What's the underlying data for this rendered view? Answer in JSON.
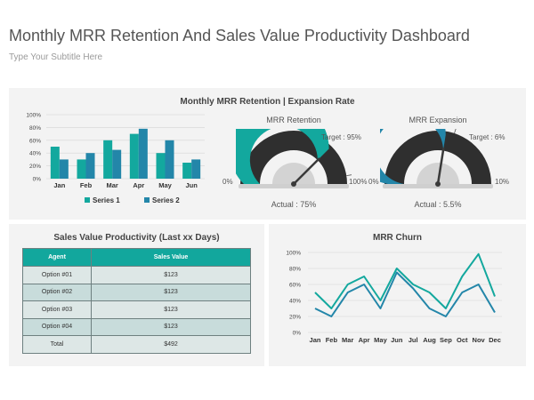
{
  "header": {
    "title": "Monthly MRR Retention And Sales Value Productivity Dashboard",
    "subtitle": "Type Your Subtitle Here"
  },
  "colors": {
    "teal": "#13a89e",
    "blue": "#2386a9",
    "gauge_track": "#2f2f2f",
    "gauge_inner": "#d3d3d3",
    "panel_bg": "#f3f3f3",
    "table_header": "#12a79d"
  },
  "top_panel": {
    "heading": "Monthly MRR Retention | Expansion Rate"
  },
  "gauges": [
    {
      "title": "MRR Retention",
      "min_label": "0%",
      "max_label": "100%",
      "target_label": "Target : 95%",
      "actual_label": "Actual : 75%",
      "value": 75,
      "target": 95,
      "max": 100,
      "icon": "gauge-icon"
    },
    {
      "title": "MRR Expansion",
      "min_label": "0%",
      "max_label": "10%",
      "target_label": "Target : 6%",
      "actual_label": "Actual : 5.5%",
      "value": 5.5,
      "target": 6,
      "max": 10,
      "icon": "gauge-icon"
    }
  ],
  "sales_panel": {
    "heading": "Sales Value Productivity (Last xx Days)",
    "columns": [
      "Agent",
      "Sales Value"
    ],
    "rows": [
      {
        "agent": "Option #01",
        "value": "$123"
      },
      {
        "agent": "Option #02",
        "value": "$123"
      },
      {
        "agent": "Option #03",
        "value": "$123"
      },
      {
        "agent": "Option #04",
        "value": "$123"
      }
    ],
    "total": {
      "agent": "Total",
      "value": "$492"
    }
  },
  "churn_panel": {
    "heading": "MRR Churn"
  },
  "chart_data": [
    {
      "type": "bar",
      "title": "",
      "categories": [
        "Jan",
        "Feb",
        "Mar",
        "Apr",
        "May",
        "Jun"
      ],
      "series": [
        {
          "name": "Series 1",
          "values": [
            50,
            30,
            60,
            70,
            40,
            25
          ],
          "color": "#13a89e"
        },
        {
          "name": "Series 2",
          "values": [
            30,
            40,
            45,
            78,
            60,
            30
          ],
          "color": "#2386a9"
        }
      ],
      "yticks": [
        "0%",
        "20%",
        "40%",
        "60%",
        "80%",
        "100%"
      ],
      "ylim": [
        0,
        100
      ],
      "grid": true,
      "legend": "bottom"
    },
    {
      "type": "line",
      "title": "MRR Churn",
      "categories": [
        "Jan",
        "Feb",
        "Mar",
        "Apr",
        "May",
        "Jun",
        "Jul",
        "Aug",
        "Sep",
        "Oct",
        "Nov",
        "Dec"
      ],
      "series": [
        {
          "values": [
            50,
            30,
            60,
            70,
            40,
            80,
            60,
            50,
            30,
            70,
            98,
            45
          ],
          "color": "#13a89e"
        },
        {
          "values": [
            30,
            20,
            50,
            60,
            30,
            75,
            55,
            30,
            20,
            50,
            60,
            25
          ],
          "color": "#2386a9"
        }
      ],
      "yticks": [
        "0%",
        "20%",
        "40%",
        "60%",
        "80%",
        "100%"
      ],
      "ylim": [
        0,
        100
      ],
      "grid": true,
      "legend": "none"
    }
  ]
}
